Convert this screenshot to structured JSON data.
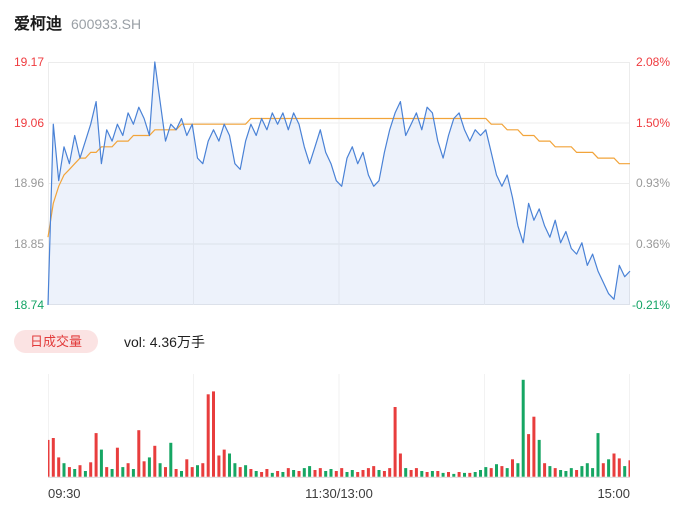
{
  "header": {
    "stock_name": "爱柯迪",
    "stock_code": "600933.SH"
  },
  "axes": {
    "left": [
      {
        "text": "19.17",
        "color": "#ef3b3f"
      },
      {
        "text": "19.06",
        "color": "#ef3b3f"
      },
      {
        "text": "18.96",
        "color": "#999999"
      },
      {
        "text": "18.85",
        "color": "#999999"
      },
      {
        "text": "18.74",
        "color": "#12a364"
      }
    ],
    "right": [
      {
        "text": "2.08%",
        "color": "#ef3b3f"
      },
      {
        "text": "1.50%",
        "color": "#ef3b3f"
      },
      {
        "text": "0.93%",
        "color": "#999999"
      },
      {
        "text": "0.36%",
        "color": "#999999"
      },
      {
        "text": "-0.21%",
        "color": "#12a364"
      }
    ],
    "time": [
      "09:30",
      "11:30/13:00",
      "15:00"
    ]
  },
  "volume_header": {
    "badge": "日成交量",
    "label": "vol: 4.36万手"
  },
  "colors": {
    "title": "#1a1a1a",
    "price_line": "#4a82d6",
    "price_fill": "rgba(74,130,214,0.10)",
    "avg_line": "#f2a43a",
    "up": "#e83d3d",
    "down": "#16a663",
    "badge_bg": "#fbe3e3",
    "badge_text": "#e23b3b"
  },
  "chart_data": {
    "type": "line",
    "title": "爱柯迪 600933.SH 分时走势",
    "x_ticks": [
      "09:30",
      "11:30/13:00",
      "15:00"
    ],
    "y_left_ticks": [
      19.17,
      19.06,
      18.96,
      18.85,
      18.74
    ],
    "y_right_ticks": [
      "2.08%",
      "1.50%",
      "0.93%",
      "0.36%",
      "-0.21%"
    ],
    "ylim": [
      18.74,
      19.17
    ],
    "prev_close": 18.78,
    "total_volume": "4.36万手",
    "volume_note": "signed values: positive = up(red) bar, negative = down(green) bar, magnitude = relative height",
    "series": [
      {
        "name": "price",
        "values": [
          18.74,
          19.06,
          18.96,
          19.02,
          18.99,
          19.04,
          19.0,
          19.03,
          19.06,
          19.1,
          18.99,
          19.05,
          19.03,
          19.06,
          19.04,
          19.08,
          19.06,
          19.09,
          19.07,
          19.04,
          19.17,
          19.1,
          19.03,
          19.06,
          19.05,
          19.07,
          19.04,
          19.06,
          19.0,
          18.99,
          19.03,
          19.05,
          19.03,
          19.06,
          19.04,
          18.99,
          18.98,
          19.03,
          19.06,
          19.04,
          19.07,
          19.05,
          19.08,
          19.06,
          19.08,
          19.05,
          19.08,
          19.06,
          19.02,
          18.99,
          19.02,
          19.05,
          19.01,
          18.99,
          18.96,
          18.95,
          19.0,
          19.02,
          18.99,
          19.01,
          18.97,
          18.95,
          18.96,
          19.01,
          19.05,
          19.08,
          19.1,
          19.04,
          19.06,
          19.08,
          19.05,
          19.09,
          19.08,
          19.03,
          19.0,
          19.04,
          19.07,
          19.08,
          19.05,
          19.03,
          19.05,
          19.04,
          19.05,
          19.01,
          18.97,
          18.95,
          18.97,
          18.93,
          18.88,
          18.85,
          18.92,
          18.89,
          18.91,
          18.88,
          18.86,
          18.89,
          18.85,
          18.87,
          18.84,
          18.83,
          18.85,
          18.81,
          18.83,
          18.8,
          18.78,
          18.76,
          18.75,
          18.81,
          18.79,
          18.8
        ]
      },
      {
        "name": "avg_price",
        "values": [
          18.86,
          18.92,
          18.95,
          18.97,
          18.98,
          18.99,
          19.0,
          19.0,
          19.01,
          19.01,
          19.02,
          19.02,
          19.02,
          19.03,
          19.03,
          19.03,
          19.04,
          19.04,
          19.04,
          19.04,
          19.05,
          19.05,
          19.05,
          19.05,
          19.05,
          19.06,
          19.06,
          19.06,
          19.06,
          19.06,
          19.06,
          19.06,
          19.06,
          19.06,
          19.06,
          19.06,
          19.06,
          19.06,
          19.07,
          19.07,
          19.07,
          19.07,
          19.07,
          19.07,
          19.07,
          19.07,
          19.07,
          19.07,
          19.07,
          19.07,
          19.07,
          19.07,
          19.07,
          19.07,
          19.07,
          19.07,
          19.07,
          19.07,
          19.07,
          19.07,
          19.07,
          19.07,
          19.07,
          19.07,
          19.07,
          19.07,
          19.07,
          19.07,
          19.07,
          19.07,
          19.07,
          19.07,
          19.07,
          19.07,
          19.07,
          19.07,
          19.07,
          19.07,
          19.07,
          19.07,
          19.07,
          19.07,
          19.07,
          19.06,
          19.06,
          19.06,
          19.05,
          19.05,
          19.05,
          19.04,
          19.04,
          19.04,
          19.03,
          19.03,
          19.03,
          19.02,
          19.02,
          19.02,
          19.02,
          19.01,
          19.01,
          19.01,
          19.01,
          19.0,
          19.0,
          19.0,
          19.0,
          18.99,
          18.99,
          18.99
        ]
      },
      {
        "name": "volume",
        "values": [
          38,
          40,
          20,
          -14,
          10,
          -8,
          12,
          -6,
          15,
          45,
          -28,
          10,
          -8,
          30,
          -10,
          14,
          -8,
          48,
          16,
          -20,
          32,
          -14,
          10,
          -35,
          8,
          -6,
          18,
          10,
          -12,
          14,
          85,
          88,
          22,
          28,
          -24,
          -14,
          10,
          -12,
          8,
          -6,
          5,
          8,
          -4,
          6,
          -5,
          9,
          -7,
          6,
          -9,
          -11,
          7,
          9,
          -6,
          -8,
          6,
          9,
          -5,
          -7,
          5,
          7,
          9,
          11,
          -7,
          6,
          9,
          72,
          24,
          -9,
          7,
          9,
          -6,
          5,
          -6,
          6,
          -4,
          5,
          -3,
          5,
          -4,
          4,
          -5,
          -7,
          -10,
          9,
          -13,
          11,
          -9,
          18,
          -14,
          -100,
          44,
          62,
          -38,
          14,
          -11,
          9,
          -7,
          -6,
          -9,
          7,
          -11,
          -14,
          -9,
          -45,
          14,
          -18,
          24,
          19,
          -11,
          17
        ]
      }
    ]
  }
}
